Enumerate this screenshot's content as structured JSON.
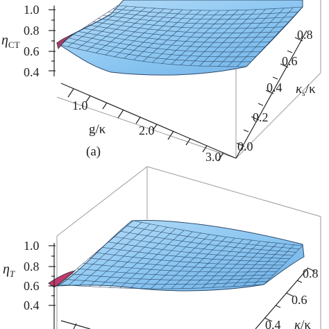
{
  "chart_data": [
    {
      "type": "surface",
      "panel_label": "(a)",
      "zlabel": "η_CT",
      "xlabel": "g/κ",
      "ylabel": "κ_s/κ",
      "zlim": [
        0.4,
        1.0
      ],
      "xlim": [
        0.0,
        3.0
      ],
      "ylim": [
        0.0,
        1.0
      ],
      "z_ticks": [
        "1.0",
        "0.8",
        "0.6",
        "0.4"
      ],
      "x_ticks": [
        "1.0",
        "2.0",
        "3.0"
      ],
      "y_ticks": [
        "0.0",
        "0.2",
        "0.4",
        "0.6",
        "0.8"
      ],
      "surface_color": "#8ec8f2",
      "edge_color": "#d24a7a",
      "description_of_surface": "efficiency rises steeply from ~0.6 at small g/κ to ~1.0 and stays near 1 for larger g/κ, nearly flat across κs/κ"
    },
    {
      "type": "surface",
      "panel_label": "",
      "zlabel": "η_T",
      "xlabel": "",
      "ylabel": "κ_s/κ",
      "zlim": [
        0.4,
        1.0
      ],
      "xlim": [
        0.0,
        3.0
      ],
      "ylim": [
        0.0,
        1.0
      ],
      "z_ticks": [
        "1.0",
        "0.8",
        "0.6",
        "0.4"
      ],
      "y_ticks": [
        "0.4",
        "0.6",
        "0.8"
      ],
      "surface_color": "#8ec8f2",
      "edge_color": "#d24a7a"
    }
  ],
  "text": {
    "a_zlab_main": "η",
    "a_zlab_sub": "CT",
    "a_xlab": "g/κ",
    "a_ylab_k1": "κ",
    "a_ylab_s": "s",
    "a_ylab_rest": "/κ",
    "a_panel": "(a)",
    "b_zlab_main": "η",
    "b_zlab_sub": "T",
    "b_ylab_k1": "κ",
    "b_ylab_rest": "/κ"
  }
}
